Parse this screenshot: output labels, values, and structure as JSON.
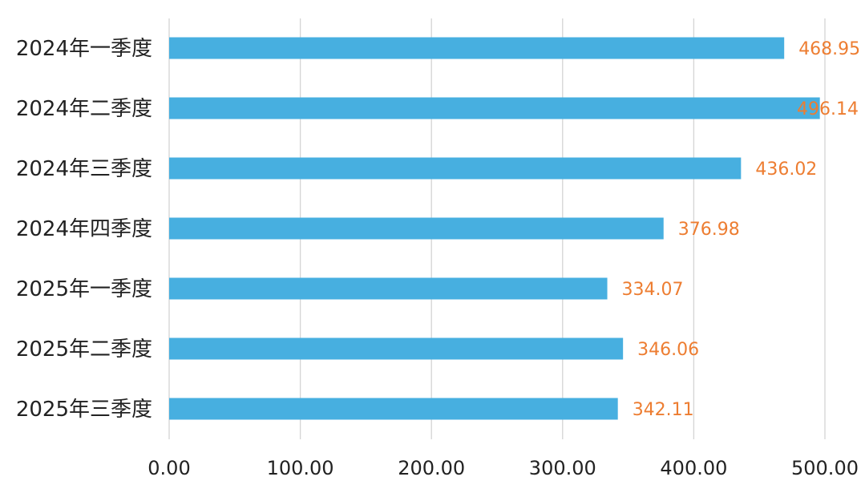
{
  "chart_data": {
    "type": "bar",
    "orientation": "horizontal",
    "title": "",
    "xlabel": "",
    "ylabel": "",
    "categories": [
      "2024年一季度",
      "2024年二季度",
      "2024年三季度",
      "2024年四季度",
      "2025年一季度",
      "2025年二季度",
      "2025年三季度"
    ],
    "values": [
      468.95,
      496.14,
      436.02,
      376.98,
      334.07,
      346.06,
      342.11
    ],
    "value_labels": [
      "468.95",
      "496.14",
      "436.02",
      "376.98",
      "334.07",
      "346.06",
      "342.11"
    ],
    "xlim": [
      0,
      500
    ],
    "x_ticks": [
      0,
      100,
      200,
      300,
      400,
      500
    ],
    "x_tick_labels": [
      "0.00",
      "100.00",
      "200.00",
      "300.00",
      "400.00",
      "500.00"
    ],
    "grid": "vertical",
    "legend": "none",
    "colors": {
      "bar": "#47afe0",
      "data_label": "#ed7d31",
      "gridline": "#d4d4d4",
      "text": "#222222"
    }
  }
}
